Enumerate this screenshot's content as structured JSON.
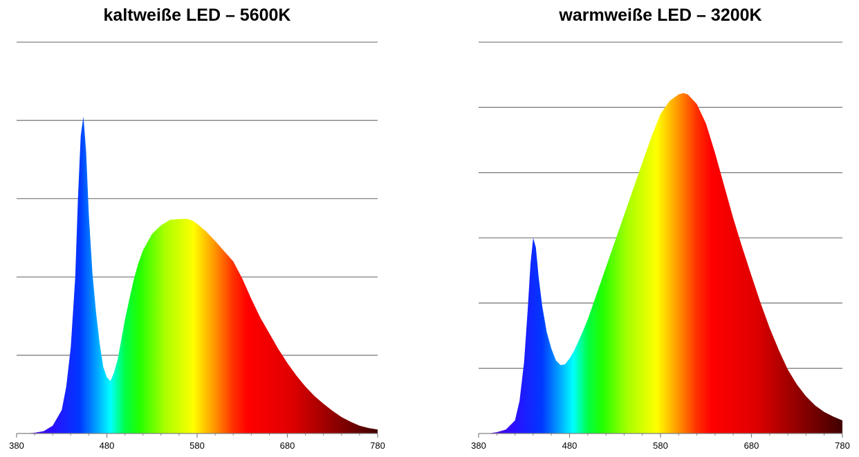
{
  "chart_data": [
    {
      "type": "area",
      "title": "kaltweiße LED – 5600K",
      "xlabel": "",
      "ylabel": "",
      "xlim": [
        380,
        780
      ],
      "ylim": [
        0,
        5
      ],
      "x_ticks": [
        380,
        480,
        580,
        680,
        780
      ],
      "y_gridlines": [
        1,
        2,
        3,
        4,
        5
      ],
      "grid": true,
      "legend": "none",
      "fill": "visible-spectrum gradient",
      "points": [
        [
          380,
          0
        ],
        [
          390,
          0
        ],
        [
          400,
          0.01
        ],
        [
          410,
          0.03
        ],
        [
          420,
          0.1
        ],
        [
          430,
          0.3
        ],
        [
          435,
          0.6
        ],
        [
          440,
          1.1
        ],
        [
          445,
          2.0
        ],
        [
          448,
          3.0
        ],
        [
          451,
          3.8
        ],
        [
          454,
          4.05
        ],
        [
          457,
          3.6
        ],
        [
          460,
          2.8
        ],
        [
          464,
          2.05
        ],
        [
          468,
          1.55
        ],
        [
          472,
          1.15
        ],
        [
          476,
          0.85
        ],
        [
          480,
          0.72
        ],
        [
          484,
          0.67
        ],
        [
          488,
          0.78
        ],
        [
          492,
          0.95
        ],
        [
          496,
          1.2
        ],
        [
          500,
          1.45
        ],
        [
          505,
          1.72
        ],
        [
          510,
          1.98
        ],
        [
          515,
          2.18
        ],
        [
          520,
          2.34
        ],
        [
          530,
          2.55
        ],
        [
          540,
          2.66
        ],
        [
          550,
          2.73
        ],
        [
          560,
          2.74
        ],
        [
          570,
          2.74
        ],
        [
          575,
          2.72
        ],
        [
          580,
          2.68
        ],
        [
          590,
          2.58
        ],
        [
          600,
          2.46
        ],
        [
          610,
          2.33
        ],
        [
          620,
          2.2
        ],
        [
          630,
          1.98
        ],
        [
          640,
          1.72
        ],
        [
          650,
          1.48
        ],
        [
          660,
          1.28
        ],
        [
          670,
          1.08
        ],
        [
          680,
          0.9
        ],
        [
          690,
          0.74
        ],
        [
          700,
          0.6
        ],
        [
          710,
          0.48
        ],
        [
          720,
          0.38
        ],
        [
          730,
          0.29
        ],
        [
          740,
          0.21
        ],
        [
          750,
          0.15
        ],
        [
          760,
          0.1
        ],
        [
          770,
          0.07
        ],
        [
          780,
          0.05
        ]
      ]
    },
    {
      "type": "area",
      "title": "warmweiße LED – 3200K",
      "xlabel": "",
      "ylabel": "",
      "xlim": [
        380,
        780
      ],
      "ylim": [
        0,
        6
      ],
      "x_ticks": [
        380,
        480,
        580,
        680,
        780
      ],
      "y_gridlines": [
        1,
        2,
        3,
        4,
        5,
        6
      ],
      "grid": true,
      "legend": "none",
      "fill": "visible-spectrum gradient",
      "points": [
        [
          380,
          0
        ],
        [
          390,
          0
        ],
        [
          400,
          0.02
        ],
        [
          410,
          0.06
        ],
        [
          420,
          0.2
        ],
        [
          425,
          0.5
        ],
        [
          430,
          1.1
        ],
        [
          434,
          1.9
        ],
        [
          437,
          2.6
        ],
        [
          440,
          3.0
        ],
        [
          443,
          2.85
        ],
        [
          446,
          2.4
        ],
        [
          450,
          1.95
        ],
        [
          455,
          1.55
        ],
        [
          460,
          1.3
        ],
        [
          465,
          1.12
        ],
        [
          470,
          1.05
        ],
        [
          475,
          1.06
        ],
        [
          480,
          1.15
        ],
        [
          485,
          1.27
        ],
        [
          490,
          1.42
        ],
        [
          495,
          1.58
        ],
        [
          500,
          1.75
        ],
        [
          510,
          2.15
        ],
        [
          520,
          2.55
        ],
        [
          530,
          2.95
        ],
        [
          540,
          3.35
        ],
        [
          550,
          3.75
        ],
        [
          560,
          4.15
        ],
        [
          570,
          4.55
        ],
        [
          580,
          4.9
        ],
        [
          590,
          5.1
        ],
        [
          600,
          5.2
        ],
        [
          605,
          5.22
        ],
        [
          610,
          5.2
        ],
        [
          620,
          5.05
        ],
        [
          630,
          4.75
        ],
        [
          640,
          4.3
        ],
        [
          650,
          3.8
        ],
        [
          660,
          3.3
        ],
        [
          670,
          2.85
        ],
        [
          680,
          2.42
        ],
        [
          690,
          2.0
        ],
        [
          700,
          1.62
        ],
        [
          710,
          1.28
        ],
        [
          720,
          0.98
        ],
        [
          730,
          0.75
        ],
        [
          740,
          0.57
        ],
        [
          750,
          0.43
        ],
        [
          760,
          0.33
        ],
        [
          770,
          0.26
        ],
        [
          780,
          0.2
        ]
      ]
    }
  ]
}
